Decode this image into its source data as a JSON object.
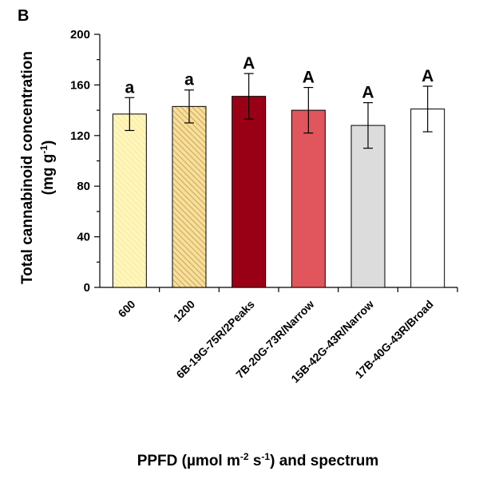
{
  "panel_label": "B",
  "chart_data": {
    "type": "bar",
    "ylabel_line1": "Total cannabinoid concentration",
    "ylabel_line2": {
      "pre": "(mg g",
      "sup": "-1",
      "post": ")"
    },
    "xlabel": {
      "parts": [
        {
          "text": "PPFD (µmol m",
          "sup": false
        },
        {
          "text": "-2",
          "sup": true
        },
        {
          "text": " s",
          "sup": false
        },
        {
          "text": "-1",
          "sup": true
        },
        {
          "text": ") and spectrum",
          "sup": false
        }
      ]
    },
    "ylim": [
      0,
      200
    ],
    "yticks": [
      0,
      40,
      80,
      120,
      160,
      200
    ],
    "categories": [
      "600",
      "1200",
      "6B-19G-75R/2Peaks",
      "7B-20G-73R/Narrow",
      "15B-42G-43R/Narrow",
      "17B-40G-43R/Broad"
    ],
    "values": [
      137,
      143,
      151,
      140,
      128,
      141
    ],
    "errors": [
      13,
      13,
      18,
      18,
      18,
      18
    ],
    "significance_labels": [
      "a",
      "a",
      "A",
      "A",
      "A",
      "A"
    ],
    "fills": [
      "#fdf6c0",
      "#f5dfa0",
      "#9a0015",
      "#e1555d",
      "#dcdcdc",
      "#ffffff"
    ],
    "hatch_colors": [
      "#ffe98a",
      "#d3a442",
      null,
      null,
      null,
      null
    ],
    "grid": false
  }
}
